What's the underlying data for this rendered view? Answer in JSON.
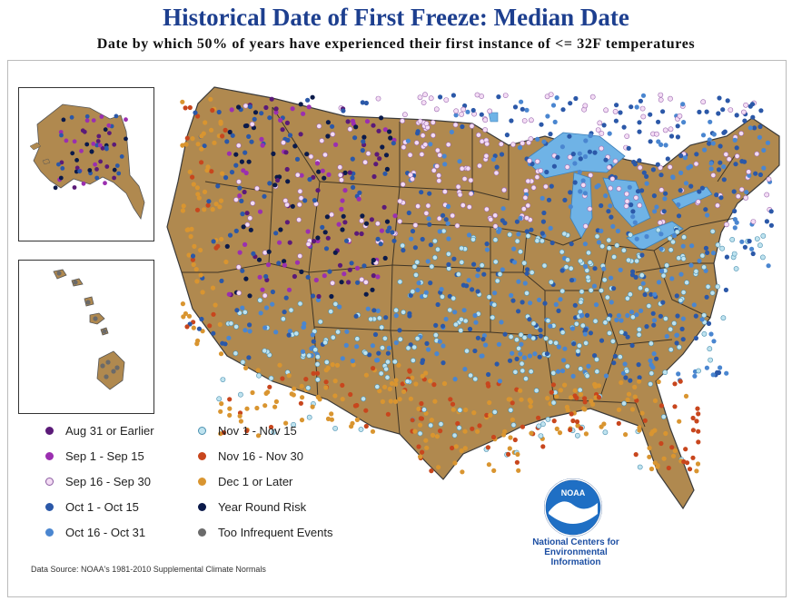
{
  "header": {
    "title": "Historical Date of First Freeze: Median Date",
    "subtitle": "Date by which 50% of years have experienced their first instance of <= 32F temperatures"
  },
  "legend": [
    {
      "label": "Aug 31 or Earlier",
      "color": "#5b1a78",
      "icon": "dot"
    },
    {
      "label": "Sep 1 - Sep 15",
      "color": "#9b2fb0",
      "icon": "dot"
    },
    {
      "label": "Sep 16 - Sep 30",
      "color": "#f4dcf4",
      "icon": "hollow-dot"
    },
    {
      "label": "Oct 1 - Oct 15",
      "color": "#2b58a8",
      "icon": "dot"
    },
    {
      "label": "Oct 16 - Oct 31",
      "color": "#4a86d0",
      "icon": "dot"
    },
    {
      "label": "Nov 1 - Nov 15",
      "color": "#bfe3ef",
      "icon": "hollow-dot"
    },
    {
      "label": "Nov 16 - Nov 30",
      "color": "#c8461d",
      "icon": "dot"
    },
    {
      "label": "Dec 1 or Later",
      "color": "#d99530",
      "icon": "dot"
    },
    {
      "label": "Year Round Risk",
      "color": "#0b1a4a",
      "icon": "dot"
    },
    {
      "label": "Too Infrequent Events",
      "color": "#6a6a6a",
      "icon": "dot"
    }
  ],
  "source": "Data Source: NOAA's 1981-2010 Supplemental Climate Normals",
  "logo": {
    "badge": "NOAA",
    "caption_lines": [
      "National Centers for",
      "Environmental",
      "Information"
    ]
  },
  "colors": {
    "land": "#b0894f",
    "water": "#6fb3e6",
    "state_lines": "#1a1a1a",
    "title": "#1d3f8f"
  }
}
